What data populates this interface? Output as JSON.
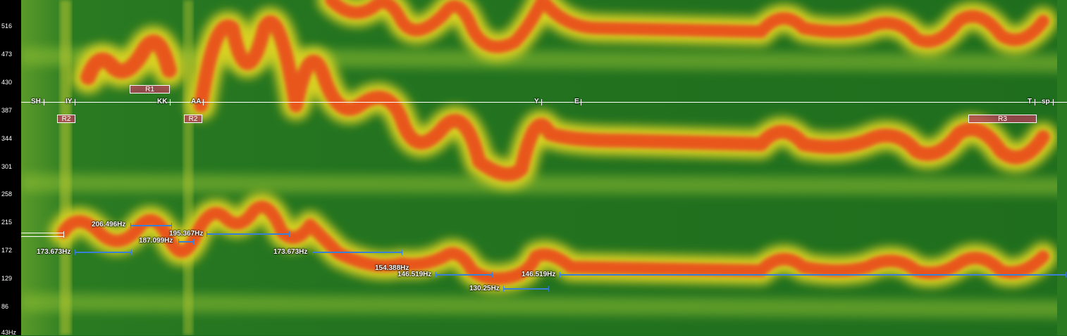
{
  "frequency_axis": {
    "ticks": [
      "516",
      "473",
      "430",
      "387",
      "344",
      "301",
      "258",
      "215",
      "172",
      "129",
      "86",
      "43Hz"
    ]
  },
  "phonemes": [
    "SH",
    "IY",
    "KK",
    "AA",
    "Y",
    "E",
    "T",
    "sp"
  ],
  "regions": [
    "R1",
    "R2",
    "R2",
    "R3"
  ],
  "pitch_segments": [
    {
      "label": "173.673Hz"
    },
    {
      "label": "206.496Hz"
    },
    {
      "label": "187.099Hz"
    },
    {
      "label": "195.367Hz"
    },
    {
      "label": "173.673Hz"
    },
    {
      "label": "154.388Hz"
    },
    {
      "label": "146.519Hz"
    },
    {
      "label": "130.25Hz"
    },
    {
      "label": "146.519Hz"
    }
  ],
  "colors": {
    "background": "#1c6e1c",
    "formant": "#e8561a",
    "pitch_line": "#3a7fd6",
    "region": "#b43c5a"
  }
}
